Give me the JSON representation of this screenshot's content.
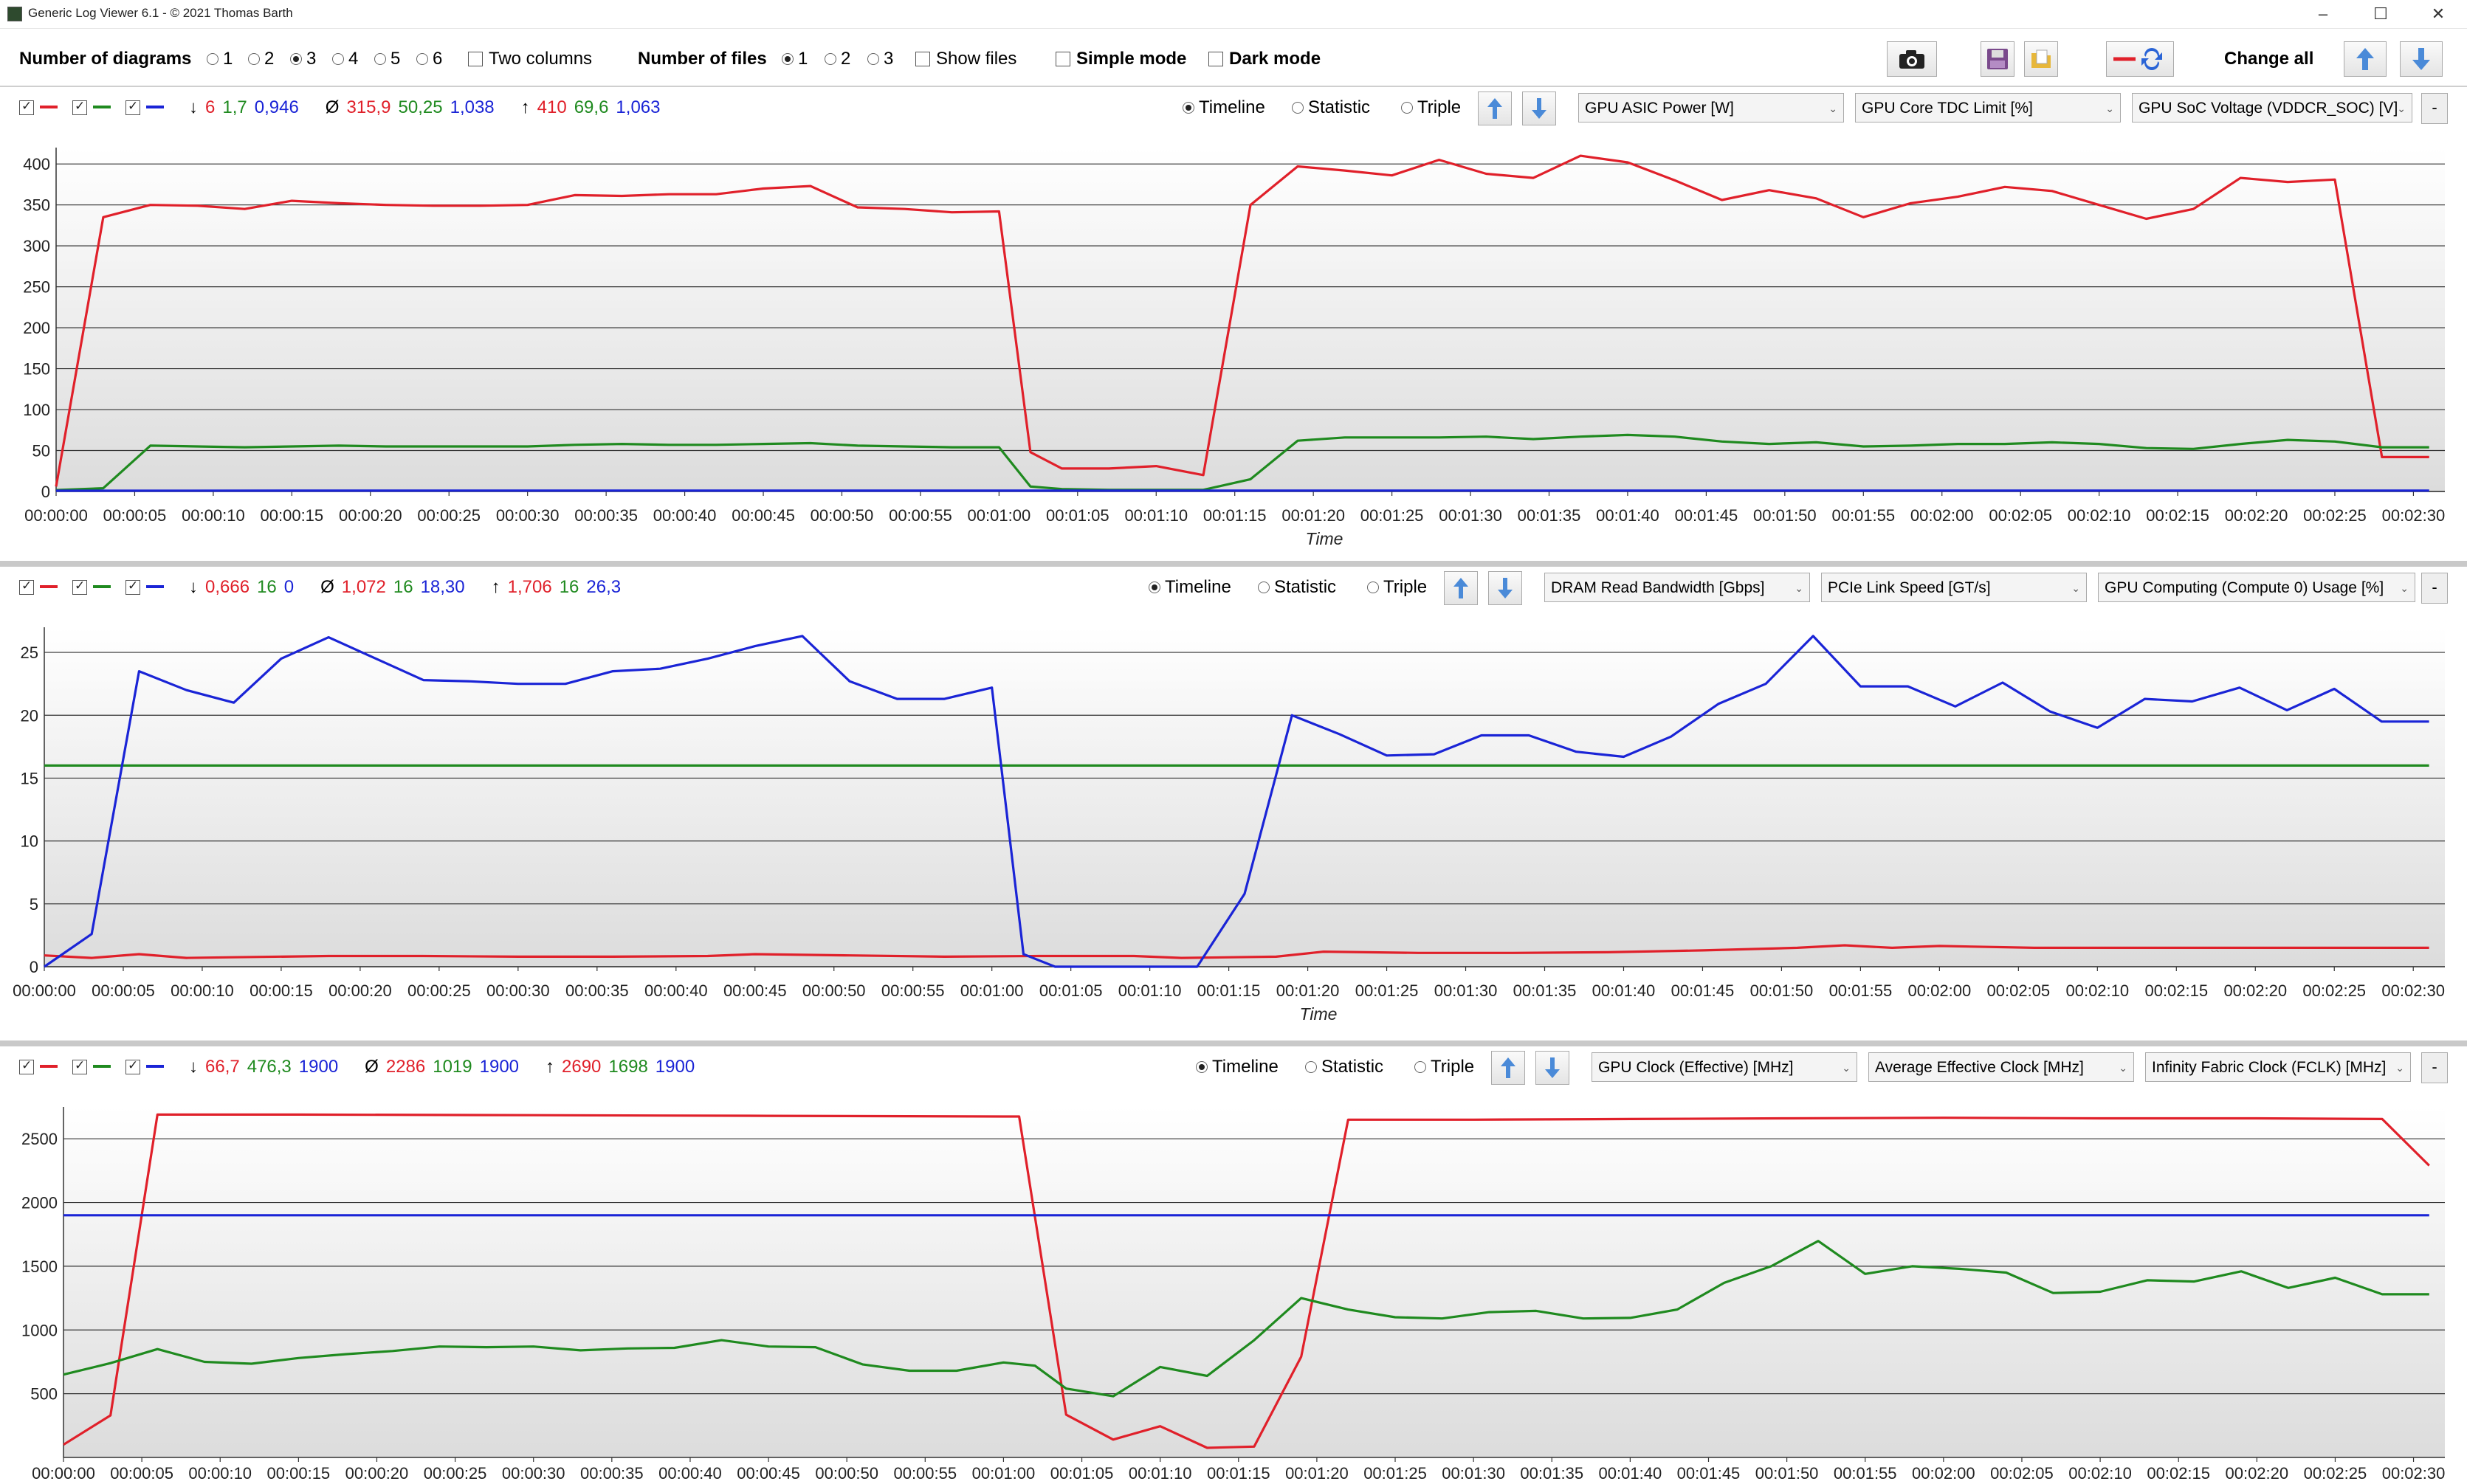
{
  "window": {
    "title": "Generic Log Viewer 6.1 - © 2021 Thomas Barth",
    "minimize": "–",
    "maximize": "☐",
    "close": "✕"
  },
  "toolbar": {
    "num_diagrams_label": "Number of diagrams",
    "diagram_options": [
      "1",
      "2",
      "3",
      "4",
      "5",
      "6"
    ],
    "diagram_selected": "3",
    "two_columns_label": "Two columns",
    "two_columns_checked": false,
    "num_files_label": "Number of files",
    "file_options": [
      "1",
      "2",
      "3"
    ],
    "file_selected": "1",
    "show_files_label": "Show files",
    "show_files_checked": false,
    "simple_mode_label": "Simple mode",
    "simple_mode_checked": false,
    "dark_mode_label": "Dark mode",
    "dark_mode_checked": false,
    "change_all_label": "Change all",
    "icons": [
      "camera-icon",
      "save-icon",
      "folder-icon",
      "swap-colors-icon",
      "arrow-up-icon",
      "arrow-down-icon"
    ]
  },
  "colors": {
    "series1": "#e0202a",
    "series2": "#1f8a1f",
    "series3": "#1a24d6"
  },
  "x_ticks": [
    "00:00:00",
    "00:00:05",
    "00:00:10",
    "00:00:15",
    "00:00:20",
    "00:00:25",
    "00:00:30",
    "00:00:35",
    "00:00:40",
    "00:00:45",
    "00:00:50",
    "00:00:55",
    "00:01:00",
    "00:01:05",
    "00:01:10",
    "00:01:15",
    "00:01:20",
    "00:01:25",
    "00:01:30",
    "00:01:35",
    "00:01:40",
    "00:01:45",
    "00:01:50",
    "00:01:55",
    "00:02:00",
    "00:02:05",
    "00:02:10",
    "00:02:15",
    "00:02:20",
    "00:02:25",
    "00:02:30"
  ],
  "panels": [
    {
      "stats": {
        "min_symbol": "↓",
        "min": [
          "6",
          "1,7",
          "0,946"
        ],
        "avg_symbol": "Ø",
        "avg": [
          "315,9",
          "50,25",
          "1,038"
        ],
        "max_symbol": "↑",
        "max": [
          "410",
          "69,6",
          "1,063"
        ]
      },
      "mode_options": [
        "Timeline",
        "Statistic",
        "Triple"
      ],
      "mode_selected": "Timeline",
      "dropdowns": [
        "GPU ASIC Power [W]",
        "GPU Core TDC Limit [%]",
        "GPU SoC Voltage (VDDCR_SOC) [V]"
      ],
      "minus_label": "-",
      "x_title": "Time",
      "y_ticks": [
        "0",
        "50",
        "100",
        "150",
        "200",
        "250",
        "300",
        "350",
        "400"
      ]
    },
    {
      "stats": {
        "min_symbol": "↓",
        "min": [
          "0,666",
          "16",
          "0"
        ],
        "avg_symbol": "Ø",
        "avg": [
          "1,072",
          "16",
          "18,30"
        ],
        "max_symbol": "↑",
        "max": [
          "1,706",
          "16",
          "26,3"
        ]
      },
      "mode_options": [
        "Timeline",
        "Statistic",
        "Triple"
      ],
      "mode_selected": "Timeline",
      "dropdowns": [
        "DRAM Read Bandwidth [Gbps]",
        "PCIe Link Speed [GT/s]",
        "GPU Computing (Compute 0) Usage [%]"
      ],
      "minus_label": "-",
      "x_title": "Time",
      "y_ticks": [
        "0",
        "5",
        "10",
        "15",
        "20",
        "25"
      ]
    },
    {
      "stats": {
        "min_symbol": "↓",
        "min": [
          "66,7",
          "476,3",
          "1900"
        ],
        "avg_symbol": "Ø",
        "avg": [
          "2286",
          "1019",
          "1900"
        ],
        "max_symbol": "↑",
        "max": [
          "2690",
          "1698",
          "1900"
        ]
      },
      "mode_options": [
        "Timeline",
        "Statistic",
        "Triple"
      ],
      "mode_selected": "Timeline",
      "dropdowns": [
        "GPU Clock (Effective) [MHz]",
        "Average Effective Clock [MHz]",
        "Infinity Fabric Clock (FCLK) [MHz]"
      ],
      "minus_label": "-",
      "x_title": "",
      "y_ticks": [
        "500",
        "1000",
        "1500",
        "2000",
        "2500"
      ]
    }
  ],
  "chart_data": [
    {
      "type": "line",
      "x_unit": "seconds",
      "xlim": [
        0,
        152
      ],
      "ylim": [
        0,
        420
      ],
      "grid": true,
      "series": [
        {
          "name": "GPU ASIC Power [W]",
          "color": "#e0202a",
          "x": [
            0,
            3,
            6,
            9,
            12,
            15,
            18,
            21,
            24,
            27,
            30,
            33,
            36,
            39,
            42,
            45,
            48,
            51,
            54,
            57,
            60,
            62,
            64,
            67,
            70,
            73,
            76,
            79,
            82,
            85,
            88,
            91,
            94,
            97,
            100,
            103,
            106,
            109,
            112,
            115,
            118,
            121,
            124,
            127,
            130,
            133,
            136,
            139,
            142,
            145,
            148,
            151
          ],
          "y": [
            6,
            335,
            350,
            349,
            345,
            355,
            352,
            350,
            349,
            349,
            350,
            362,
            361,
            363,
            363,
            370,
            373,
            347,
            345,
            341,
            342,
            48,
            28,
            28,
            31,
            20,
            350,
            397,
            392,
            386,
            405,
            388,
            383,
            410,
            402,
            380,
            356,
            368,
            358,
            335,
            352,
            360,
            372,
            367,
            350,
            333,
            345,
            383,
            378,
            381,
            42,
            42
          ]
        },
        {
          "name": "GPU Core TDC Limit [%]",
          "color": "#1f8a1f",
          "x": [
            0,
            3,
            6,
            9,
            12,
            15,
            18,
            21,
            24,
            27,
            30,
            33,
            36,
            39,
            42,
            45,
            48,
            51,
            54,
            57,
            60,
            62,
            64,
            67,
            70,
            73,
            76,
            79,
            82,
            85,
            88,
            91,
            94,
            97,
            100,
            103,
            106,
            109,
            112,
            115,
            118,
            121,
            124,
            127,
            130,
            133,
            136,
            139,
            142,
            145,
            148,
            151
          ],
          "y": [
            1.7,
            4,
            56,
            55,
            54,
            55,
            56,
            55,
            55,
            55,
            55,
            57,
            58,
            57,
            57,
            58,
            59,
            56,
            55,
            54,
            54,
            6,
            3,
            2,
            2,
            2,
            15,
            62,
            66,
            66,
            66,
            67,
            64,
            67,
            69,
            67,
            61,
            58,
            60,
            55,
            56,
            58,
            58,
            60,
            58,
            53,
            52,
            58,
            63,
            61,
            54,
            54
          ]
        },
        {
          "name": "GPU SoC Voltage (VDDCR_SOC) [V]",
          "color": "#1a24d6",
          "x": [
            0,
            30,
            60,
            90,
            120,
            151
          ],
          "y": [
            0.946,
            1.04,
            1.03,
            1.04,
            1.05,
            1.063
          ]
        }
      ]
    },
    {
      "type": "line",
      "x_unit": "seconds",
      "xlim": [
        0,
        152
      ],
      "ylim": [
        0,
        27
      ],
      "grid": true,
      "series": [
        {
          "name": "DRAM Read Bandwidth [Gbps]",
          "color": "#e0202a",
          "x": [
            0,
            3,
            6,
            9,
            12,
            18,
            24,
            30,
            36,
            42,
            45,
            51,
            57,
            63,
            69,
            72,
            78,
            81,
            87,
            93,
            99,
            105,
            111,
            114,
            117,
            120,
            126,
            132,
            138,
            144,
            151
          ],
          "y": [
            0.9,
            0.7,
            1.0,
            0.7,
            0.75,
            0.85,
            0.85,
            0.8,
            0.8,
            0.85,
            1.0,
            0.9,
            0.8,
            0.85,
            0.85,
            0.7,
            0.8,
            1.2,
            1.1,
            1.1,
            1.15,
            1.3,
            1.5,
            1.7,
            1.5,
            1.65,
            1.5,
            1.5,
            1.5,
            1.5,
            1.5
          ]
        },
        {
          "name": "PCIe Link Speed [GT/s]",
          "color": "#1f8a1f",
          "x": [
            0,
            151
          ],
          "y": [
            16,
            16
          ]
        },
        {
          "name": "GPU Computing (Compute 0) Usage [%]",
          "color": "#1a24d6",
          "x": [
            0,
            3,
            6,
            9,
            12,
            15,
            18,
            21,
            24,
            27,
            30,
            33,
            36,
            39,
            42,
            45,
            48,
            51,
            54,
            57,
            60,
            62,
            64,
            67,
            70,
            73,
            76,
            79,
            82,
            85,
            88,
            91,
            94,
            97,
            100,
            103,
            106,
            109,
            112,
            115,
            118,
            121,
            124,
            127,
            130,
            133,
            136,
            139,
            142,
            145,
            148,
            151
          ],
          "y": [
            0,
            2.6,
            23.5,
            22,
            21,
            24.5,
            26.2,
            24.5,
            22.8,
            22.7,
            22.5,
            22.5,
            23.5,
            23.7,
            24.5,
            25.5,
            26.3,
            22.7,
            21.3,
            21.3,
            22.2,
            1,
            0,
            0,
            0,
            0,
            5.8,
            20,
            18.5,
            16.8,
            16.9,
            18.4,
            18.4,
            17.1,
            16.7,
            18.3,
            20.9,
            22.5,
            26.3,
            22.3,
            22.3,
            20.7,
            22.6,
            20.3,
            19,
            21.3,
            21.1,
            22.2,
            20.4,
            22.1,
            19.5,
            19.5
          ]
        }
      ]
    },
    {
      "type": "line",
      "x_unit": "seconds",
      "xlim": [
        0,
        152
      ],
      "ylim": [
        0,
        2750
      ],
      "grid": true,
      "series": [
        {
          "name": "GPU Clock (Effective) [MHz]",
          "color": "#e0202a",
          "x": [
            0,
            3,
            6,
            15,
            30,
            45,
            60,
            61,
            64,
            67,
            70,
            73,
            76,
            79,
            82,
            90,
            100,
            110,
            120,
            130,
            140,
            148,
            151
          ],
          "y": [
            100,
            330,
            2690,
            2690,
            2685,
            2680,
            2675,
            2675,
            335,
            140,
            245,
            75,
            85,
            790,
            2650,
            2650,
            2655,
            2660,
            2665,
            2660,
            2660,
            2655,
            2290
          ]
        },
        {
          "name": "Average Effective Clock [MHz]",
          "color": "#1f8a1f",
          "x": [
            0,
            3,
            6,
            9,
            12,
            15,
            18,
            21,
            24,
            27,
            30,
            33,
            36,
            39,
            42,
            45,
            48,
            51,
            54,
            57,
            60,
            62,
            64,
            67,
            70,
            73,
            76,
            79,
            82,
            85,
            88,
            91,
            94,
            97,
            100,
            103,
            106,
            109,
            112,
            115,
            118,
            121,
            124,
            127,
            130,
            133,
            136,
            139,
            142,
            145,
            148,
            151
          ],
          "y": [
            650,
            740,
            850,
            750,
            735,
            780,
            810,
            835,
            870,
            865,
            870,
            840,
            855,
            860,
            920,
            870,
            865,
            730,
            680,
            680,
            745,
            720,
            540,
            480,
            710,
            640,
            920,
            1250,
            1160,
            1100,
            1090,
            1140,
            1150,
            1090,
            1095,
            1160,
            1370,
            1500,
            1698,
            1440,
            1500,
            1480,
            1450,
            1290,
            1300,
            1390,
            1380,
            1460,
            1330,
            1410,
            1280,
            1280
          ]
        },
        {
          "name": "Infinity Fabric Clock (FCLK) [MHz]",
          "color": "#1a24d6",
          "x": [
            0,
            151
          ],
          "y": [
            1900,
            1900
          ]
        }
      ]
    }
  ]
}
